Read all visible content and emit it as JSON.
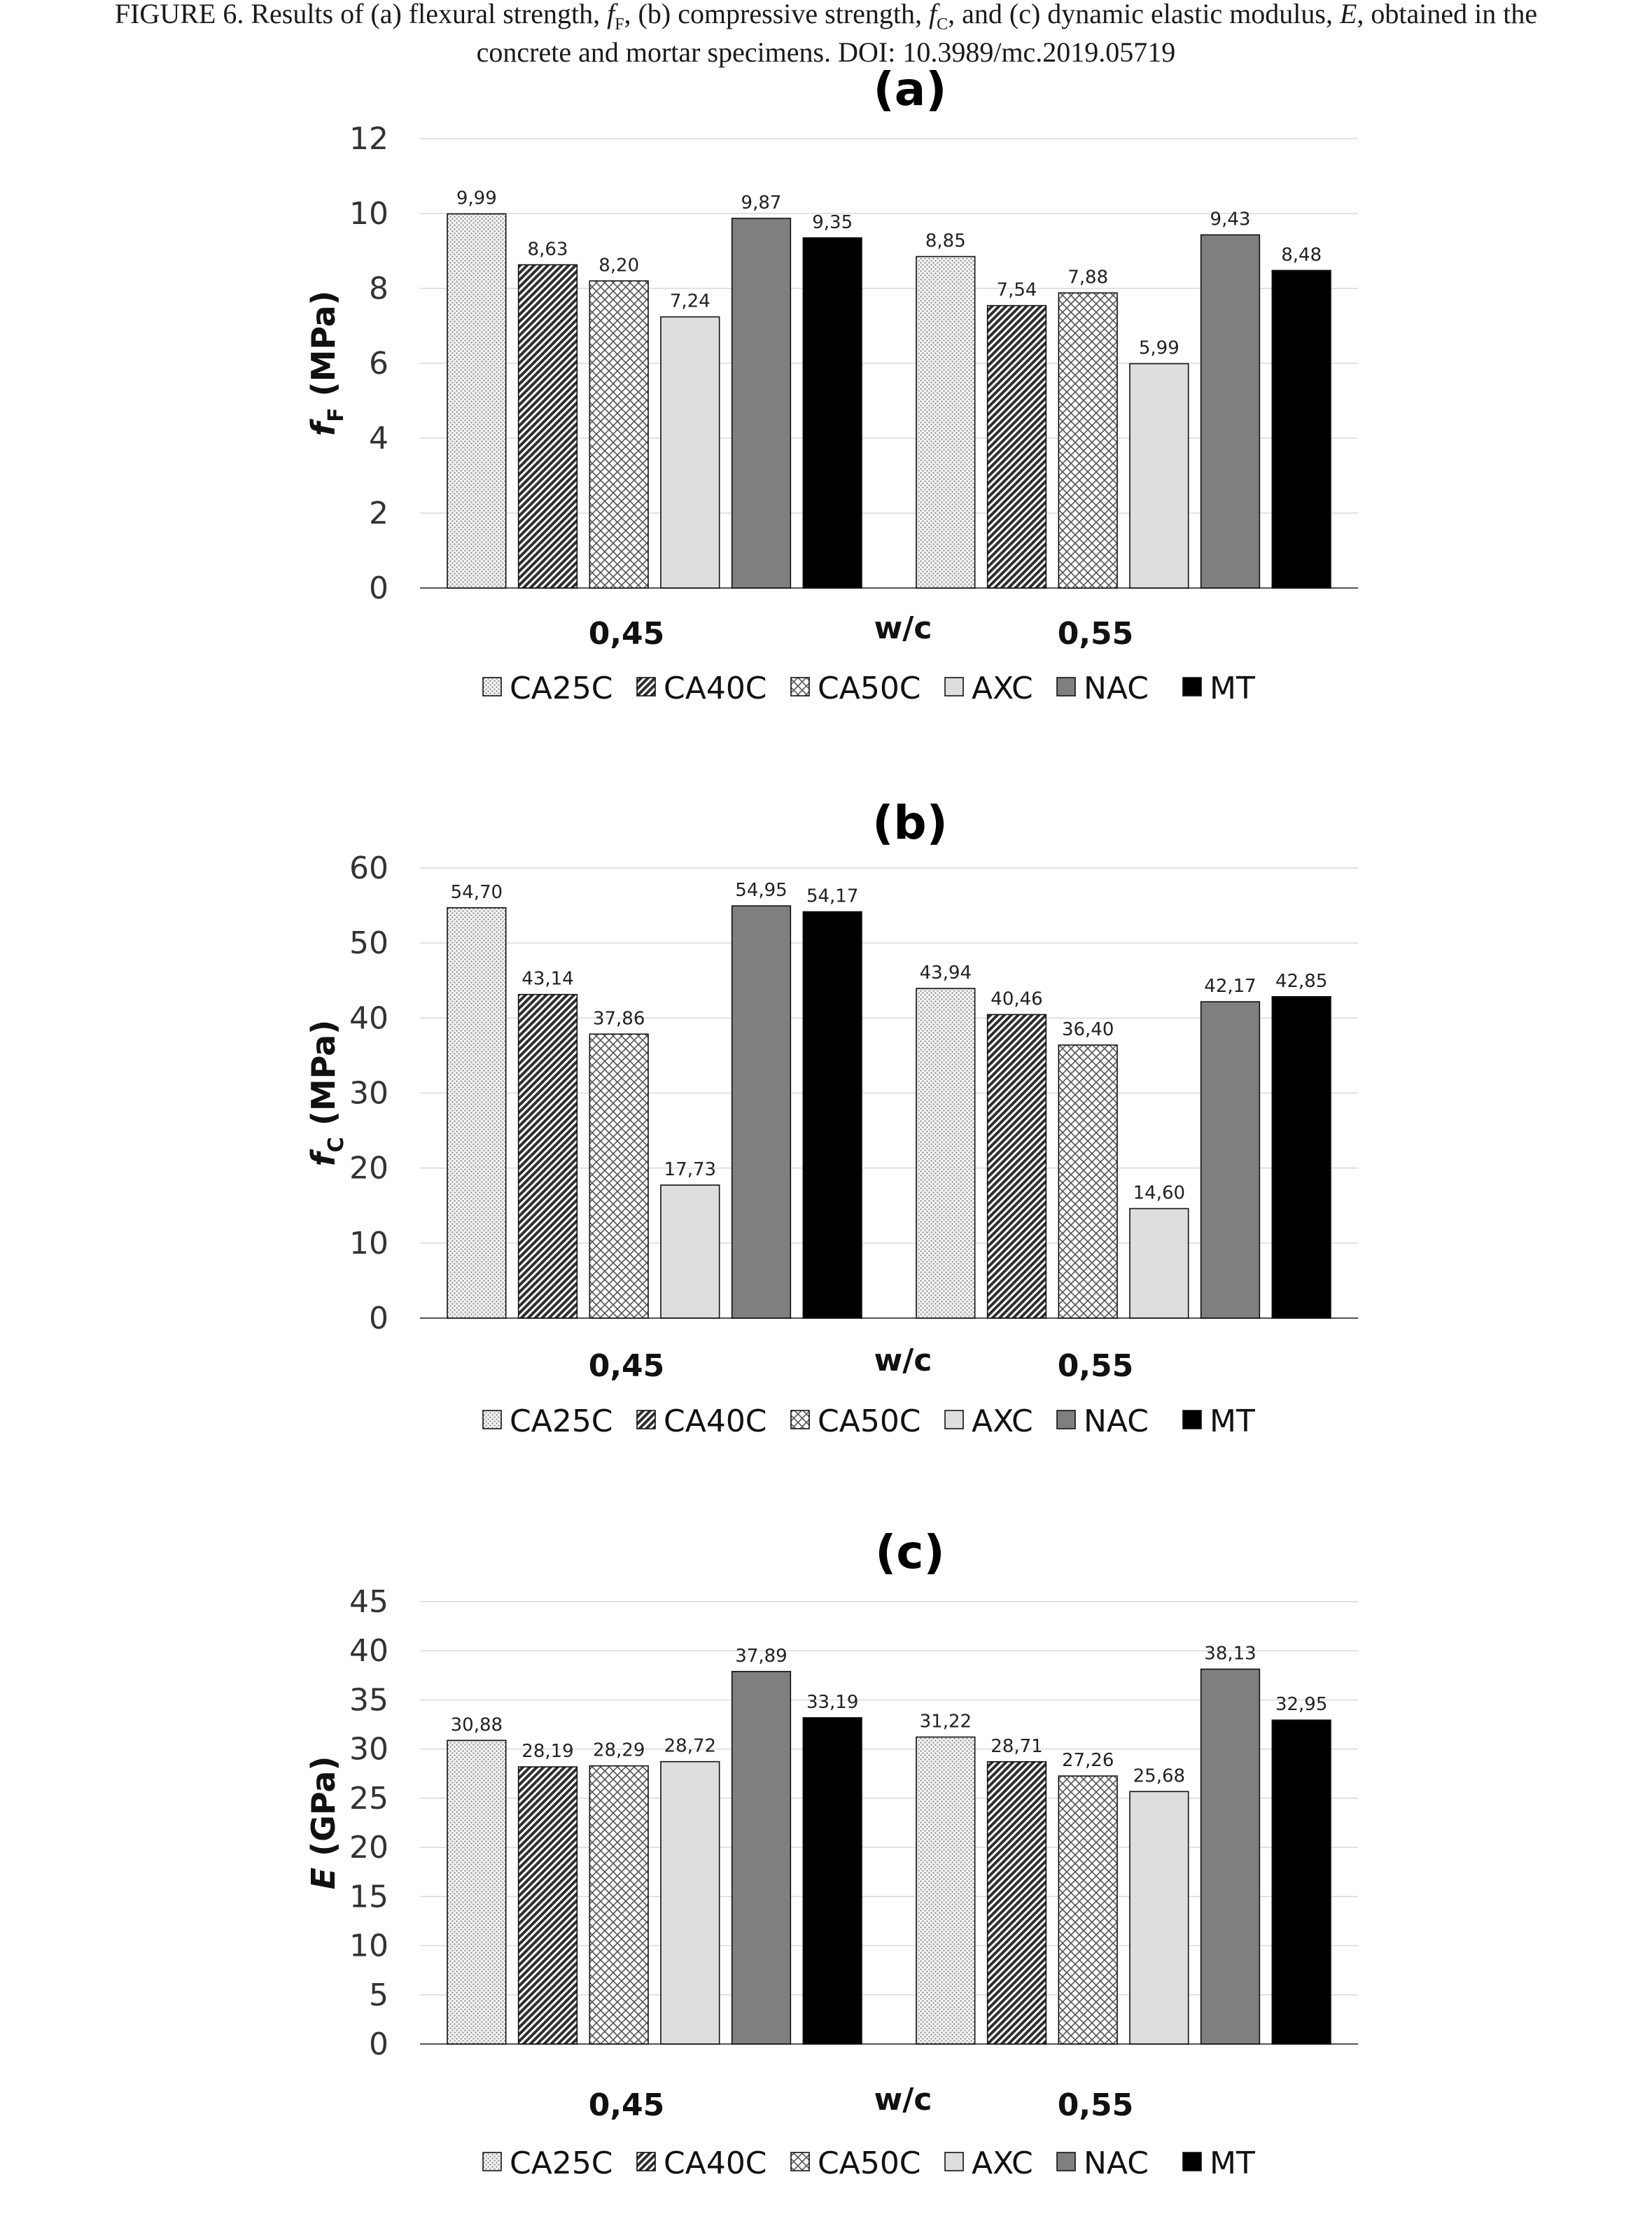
{
  "caption": {
    "line1_a": "FIGURE 6.   Results of (a) flexural strength, ",
    "line1_fF": "f",
    "line1_fF_sub": "F",
    "line1_b": ", (b) compressive strength, ",
    "line1_fC": "f",
    "line1_fC_sub": "C",
    "line1_c": ", and (c) dynamic elastic modulus, ",
    "line1_E": "E",
    "line1_d": ", obtained in the",
    "line2": "concrete and mortar specimens. DOI: 10.3989/mc.2019.05719"
  },
  "legend": [
    "CA25C",
    "CA40C",
    "CA50C",
    "AXC",
    "NAC",
    "MT"
  ],
  "colors": {
    "CA25C": "#e8e8e8",
    "CA40C": "#3a3a3a",
    "CA50C": "#ffffff",
    "AXC": "#dedede",
    "NAC": "#7f7f7f",
    "MT": "#000000"
  },
  "chart_data": [
    {
      "type": "bar",
      "title": "(a)",
      "ylabel_main": "f",
      "ylabel_sub": "F",
      "ylabel_unit": " (MPa)",
      "xlabel": "w/c",
      "categories": [
        "0,45",
        "0,55"
      ],
      "ylim": [
        0,
        12
      ],
      "yticks": [
        0,
        2,
        4,
        6,
        8,
        10,
        12
      ],
      "series": [
        {
          "name": "CA25C",
          "values": [
            9.99,
            8.85
          ],
          "labels": [
            "9,99",
            "8,85"
          ]
        },
        {
          "name": "CA40C",
          "values": [
            8.63,
            7.54
          ],
          "labels": [
            "8,63",
            "7,54"
          ]
        },
        {
          "name": "CA50C",
          "values": [
            8.2,
            7.88
          ],
          "labels": [
            "8,20",
            "7,88"
          ]
        },
        {
          "name": "AXC",
          "values": [
            7.24,
            5.99
          ],
          "labels": [
            "7,24",
            "5,99"
          ]
        },
        {
          "name": "NAC",
          "values": [
            9.87,
            9.43
          ],
          "labels": [
            "9,87",
            "9,43"
          ]
        },
        {
          "name": "MT",
          "values": [
            9.35,
            8.48
          ],
          "labels": [
            "9,35",
            "8,48"
          ]
        }
      ]
    },
    {
      "type": "bar",
      "title": "(b)",
      "ylabel_main": "f",
      "ylabel_sub": "C",
      "ylabel_unit": " (MPa)",
      "xlabel": "w/c",
      "categories": [
        "0,45",
        "0,55"
      ],
      "ylim": [
        0,
        60
      ],
      "yticks": [
        0,
        10,
        20,
        30,
        40,
        50,
        60
      ],
      "series": [
        {
          "name": "CA25C",
          "values": [
            54.7,
            43.94
          ],
          "labels": [
            "54,70",
            "43,94"
          ]
        },
        {
          "name": "CA40C",
          "values": [
            43.14,
            40.46
          ],
          "labels": [
            "43,14",
            "40,46"
          ]
        },
        {
          "name": "CA50C",
          "values": [
            37.86,
            36.4
          ],
          "labels": [
            "37,86",
            "36,40"
          ]
        },
        {
          "name": "AXC",
          "values": [
            17.73,
            14.6
          ],
          "labels": [
            "17,73",
            "14,60"
          ]
        },
        {
          "name": "NAC",
          "values": [
            54.95,
            42.17
          ],
          "labels": [
            "54,95",
            "42,17"
          ]
        },
        {
          "name": "MT",
          "values": [
            54.17,
            42.85
          ],
          "labels": [
            "54,17",
            "42,85"
          ]
        }
      ]
    },
    {
      "type": "bar",
      "title": "(c)",
      "ylabel_main": "E",
      "ylabel_sub": "",
      "ylabel_unit": " (GPa)",
      "xlabel": "w/c",
      "categories": [
        "0,45",
        "0,55"
      ],
      "ylim": [
        0,
        45
      ],
      "yticks": [
        0,
        5,
        10,
        15,
        20,
        25,
        30,
        35,
        40,
        45
      ],
      "series": [
        {
          "name": "CA25C",
          "values": [
            30.88,
            31.22
          ],
          "labels": [
            "30,88",
            "31,22"
          ]
        },
        {
          "name": "CA40C",
          "values": [
            28.19,
            28.71
          ],
          "labels": [
            "28,19",
            "28,71"
          ]
        },
        {
          "name": "CA50C",
          "values": [
            28.29,
            27.26
          ],
          "labels": [
            "28,29",
            "27,26"
          ]
        },
        {
          "name": "AXC",
          "values": [
            28.72,
            25.68
          ],
          "labels": [
            "28,72",
            "25,68"
          ]
        },
        {
          "name": "NAC",
          "values": [
            37.89,
            38.13
          ],
          "labels": [
            "37,89",
            "38,13"
          ]
        },
        {
          "name": "MT",
          "values": [
            33.19,
            32.95
          ],
          "labels": [
            "33,19",
            "32,95"
          ]
        }
      ]
    }
  ]
}
